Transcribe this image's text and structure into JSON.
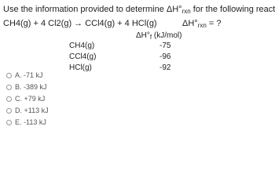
{
  "question": {
    "intro": "Use the information provided to determine ΔH°",
    "intro_sub": "rxn",
    "intro_end": " for the following reaction:",
    "reaction": "CH4(g) + 4 Cl2(g) → CCl4(g) + 4 HCl(g)",
    "dh_label": "ΔH°",
    "dh_sub": "rxn",
    "dh_end": " = ?"
  },
  "table": {
    "header": "ΔH°",
    "header_sub": "f",
    "header_end": " (kJ/mol)",
    "rows": [
      [
        "CH4(g)",
        -75
      ],
      [
        "CCl4(g)",
        -96
      ],
      [
        "HCl(g)",
        -92
      ]
    ]
  },
  "options": [
    "A. -71 kJ",
    "B. -389 kJ",
    "C. +79 kJ",
    "D. +113 kJ",
    "E. -113 kJ"
  ]
}
